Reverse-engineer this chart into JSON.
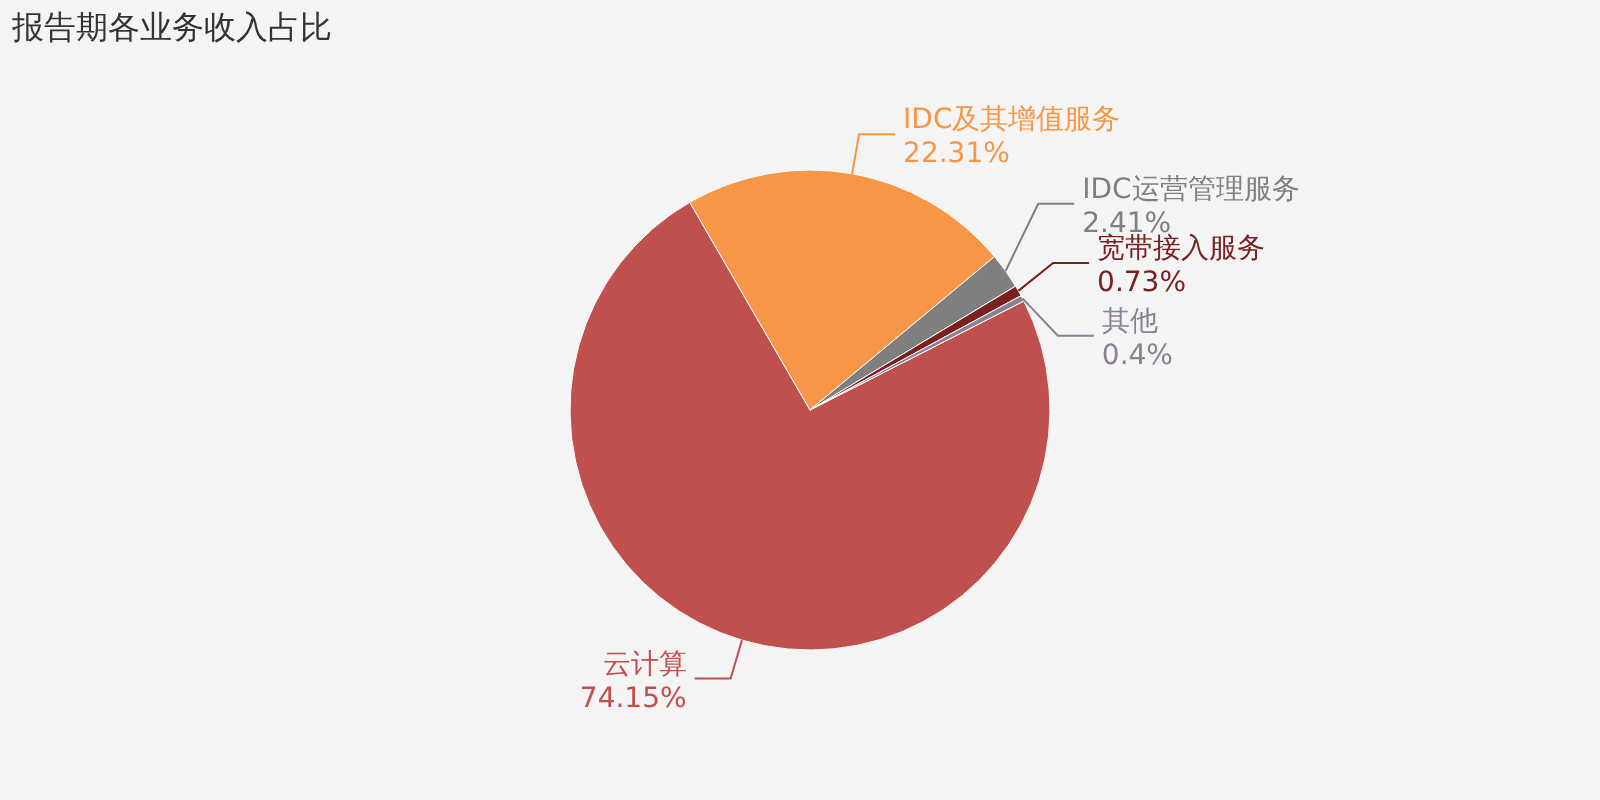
{
  "chart_data": {
    "type": "pie",
    "title": "报告期各业务收入占比",
    "categories": [
      "云计算",
      "IDC及其增值服务",
      "IDC运营管理服务",
      "宽带接入服务",
      "其他"
    ],
    "values": [
      74.15,
      22.31,
      2.41,
      0.73,
      0.4
    ],
    "colors": [
      "#c0504d",
      "#f79646",
      "#7f7f7f",
      "#7b2020",
      "#8c7f94"
    ],
    "value_labels": [
      "74.15%",
      "22.31%",
      "2.41%",
      "0.73%",
      "0.4%"
    ]
  }
}
